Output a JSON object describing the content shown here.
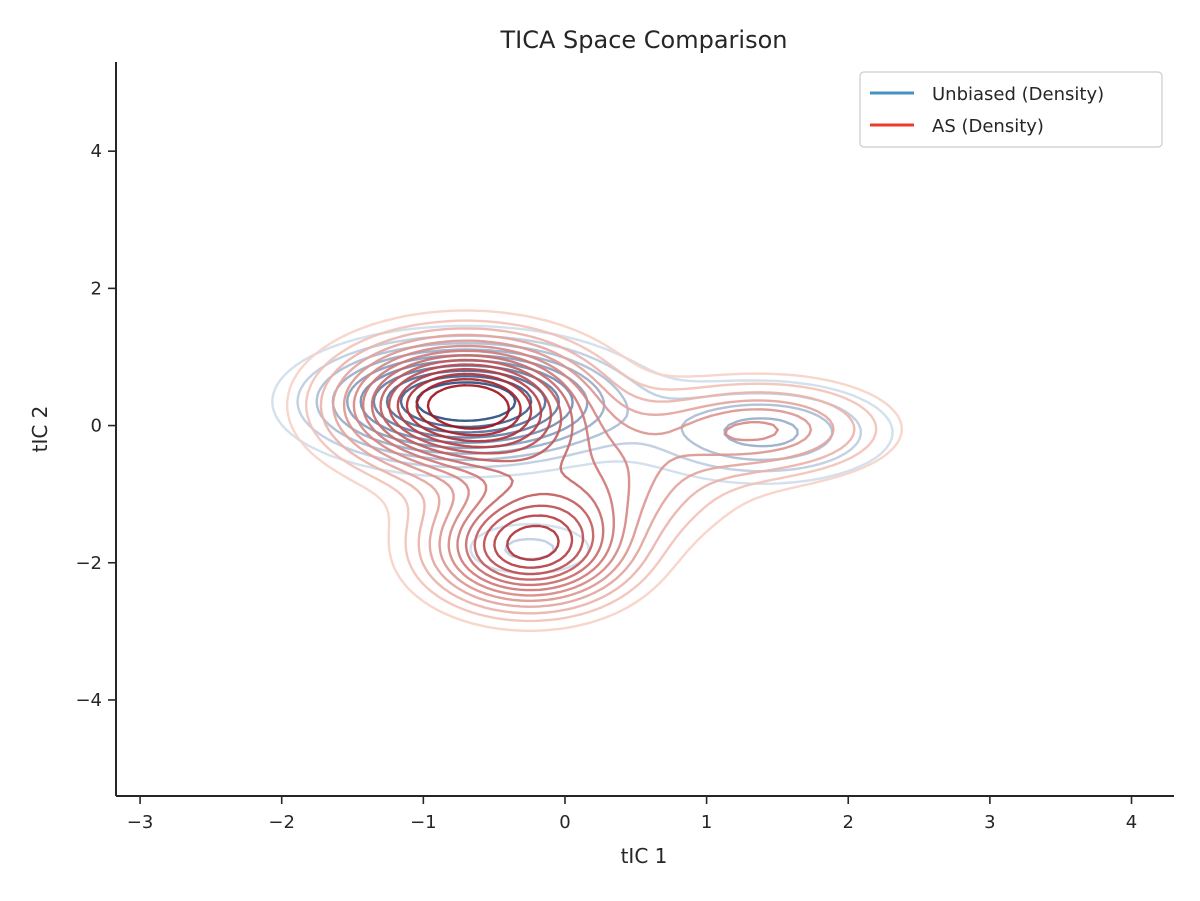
{
  "chart_data": {
    "type": "contour",
    "title": "TICA Space Comparison",
    "xlabel": "tIC 1",
    "ylabel": "tIC 2",
    "xlim": [
      -3.17,
      4.3
    ],
    "ylim": [
      -5.4,
      5.3
    ],
    "xticks": [
      -3,
      -2,
      -1,
      0,
      1,
      2,
      3,
      4
    ],
    "yticks": [
      -4,
      -2,
      0,
      2,
      4
    ],
    "grid": false,
    "legend_position": "top-right",
    "series": [
      {
        "name": "Unbiased (Density)",
        "legend_color": "#4292c6",
        "color_low": "#deebf7",
        "color_high": "#08306b",
        "levels": 10,
        "peaks": [
          {
            "x": -0.7,
            "y": 0.35,
            "sx": 0.62,
            "sy": 0.5,
            "weight": 1.0
          },
          {
            "x": 1.4,
            "y": -0.1,
            "sx": 0.55,
            "sy": 0.45,
            "weight": 0.35
          },
          {
            "x": -0.25,
            "y": -1.8,
            "sx": 0.35,
            "sy": 0.3,
            "weight": 0.18
          }
        ]
      },
      {
        "name": "AS (Density)",
        "legend_color": "#ef3b2c",
        "color_low": "#fee0d2",
        "color_high": "#99000d",
        "levels": 14,
        "peaks": [
          {
            "x": -0.7,
            "y": 0.3,
            "sx": 0.55,
            "sy": 0.6,
            "weight": 1.0
          },
          {
            "x": -0.25,
            "y": -1.8,
            "sx": 0.45,
            "sy": 0.55,
            "weight": 0.75
          },
          {
            "x": 1.4,
            "y": -0.05,
            "sx": 0.55,
            "sy": 0.45,
            "weight": 0.35
          },
          {
            "x": 0.2,
            "y": -0.8,
            "sx": 0.6,
            "sy": 0.6,
            "weight": 0.3
          }
        ]
      }
    ]
  }
}
